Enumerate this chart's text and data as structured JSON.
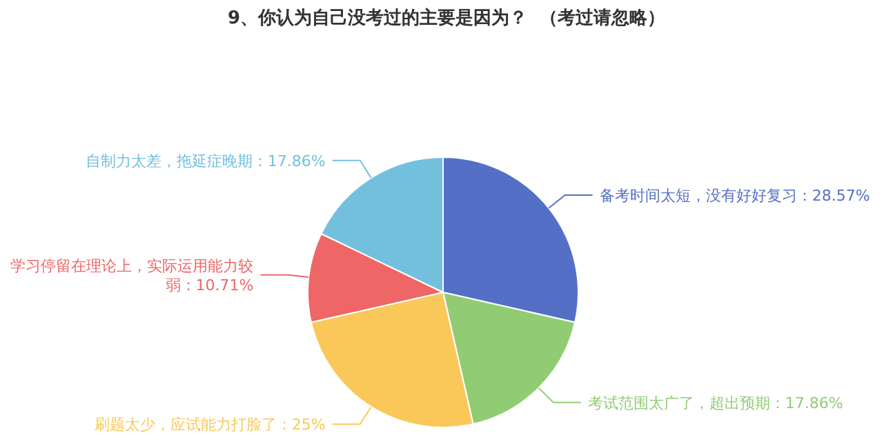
{
  "chart_data": {
    "type": "pie",
    "title": "9、你认为自己没考过的主要是因为？  （考过请忽略）",
    "categories": [
      "备考时间太短，没有好好复习",
      "考试范围太广了，超出预期",
      "刷题太少，应试能力打脸了",
      "学习停留在理论上，实际运用能力较弱",
      "自制力太差，拖延症晚期"
    ],
    "values": [
      28.57,
      17.86,
      25,
      10.71,
      17.86
    ],
    "value_labels": [
      "28.57%",
      "17.86%",
      "25%",
      "10.71%",
      "17.86%"
    ],
    "colors": [
      "#5470c6",
      "#91cc75",
      "#fac858",
      "#ee6666",
      "#73c0de"
    ]
  }
}
